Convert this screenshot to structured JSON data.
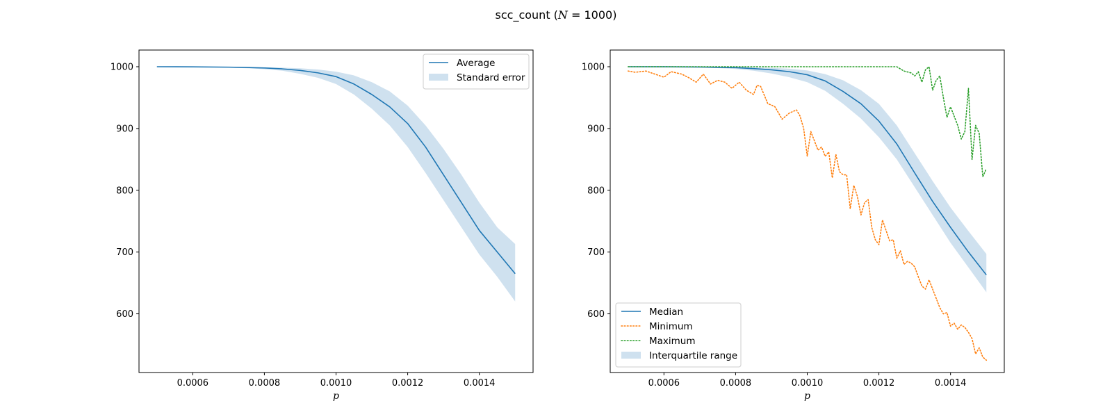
{
  "figure": {
    "title_prefix": "scc_count (",
    "title_var": "N",
    "title_suffix": " = 1000)"
  },
  "colors": {
    "blue": "#1f77b4",
    "blue_fill": "#cfe1ef",
    "orange": "#ff7f0e",
    "green": "#2ca02c"
  },
  "chart_data": [
    {
      "type": "line",
      "xlabel": "p",
      "xlim": [
        0.00045,
        0.00155
      ],
      "ylim": [
        505,
        1027
      ],
      "xticks": [
        0.0006,
        0.0008,
        0.001,
        0.0012,
        0.0014
      ],
      "xtick_labels": [
        "0.0006",
        "0.0008",
        "0.0010",
        "0.0012",
        "0.0014"
      ],
      "yticks": [
        600,
        700,
        800,
        900,
        1000
      ],
      "ytick_labels": [
        "600",
        "700",
        "800",
        "900",
        "1000"
      ],
      "legend": {
        "position": "upper right",
        "entries": [
          "Average",
          "Standard error"
        ]
      },
      "x": [
        0.0005,
        0.0006,
        0.0007,
        0.00075,
        0.0008,
        0.00085,
        0.0009,
        0.00095,
        0.001,
        0.00105,
        0.0011,
        0.00115,
        0.0012,
        0.00125,
        0.0013,
        0.00135,
        0.0014,
        0.00145,
        0.0015
      ],
      "series": [
        {
          "name": "Average",
          "style": "solid",
          "values": [
            1000,
            999.8,
            999.3,
            998.8,
            998,
            996.5,
            994,
            990,
            984,
            972,
            955,
            935,
            908,
            870,
            825,
            780,
            735,
            700,
            665
          ]
        },
        {
          "name": "Standard error",
          "style": "band",
          "lower": [
            1000,
            999.6,
            998.5,
            997.5,
            996,
            993.5,
            988.5,
            982,
            972,
            955,
            932,
            905,
            870,
            828,
            784,
            740,
            696,
            660,
            620
          ],
          "upper": [
            1000,
            999.9,
            999.8,
            999.5,
            999,
            998.5,
            997.5,
            995.5,
            992,
            986,
            975,
            960,
            937,
            905,
            867,
            825,
            780,
            740,
            713
          ]
        }
      ]
    },
    {
      "type": "line",
      "xlabel": "p",
      "xlim": [
        0.00045,
        0.00155
      ],
      "ylim": [
        505,
        1027
      ],
      "xticks": [
        0.0006,
        0.0008,
        0.001,
        0.0012,
        0.0014
      ],
      "xtick_labels": [
        "0.0006",
        "0.0008",
        "0.0010",
        "0.0012",
        "0.0014"
      ],
      "yticks": [
        600,
        700,
        800,
        900,
        1000
      ],
      "ytick_labels": [
        "600",
        "700",
        "800",
        "900",
        "1000"
      ],
      "legend": {
        "position": "lower left",
        "entries": [
          "Median",
          "Minimum",
          "Maximum",
          "Interquartile range"
        ]
      },
      "series": [
        {
          "name": "Median",
          "style": "solid",
          "x": [
            0.0005,
            0.0006,
            0.0007,
            0.00075,
            0.0008,
            0.00085,
            0.0009,
            0.00095,
            0.001,
            0.00105,
            0.0011,
            0.00115,
            0.0012,
            0.00125,
            0.0013,
            0.00135,
            0.0014,
            0.00145,
            0.0015
          ],
          "values": [
            1000,
            999.9,
            999.5,
            999,
            998.5,
            997,
            995,
            992,
            987,
            977,
            960,
            940,
            912,
            875,
            828,
            782,
            740,
            700,
            663
          ]
        },
        {
          "name": "Interquartile range",
          "style": "band",
          "x": [
            0.0005,
            0.0006,
            0.0007,
            0.00075,
            0.0008,
            0.00085,
            0.0009,
            0.00095,
            0.001,
            0.00105,
            0.0011,
            0.00115,
            0.0012,
            0.00125,
            0.0013,
            0.00135,
            0.0014,
            0.00145,
            0.0015
          ],
          "lower": [
            1000,
            999.5,
            998.7,
            997.8,
            996.3,
            993.5,
            989,
            983,
            975,
            961,
            940,
            916,
            886,
            850,
            805,
            760,
            715,
            675,
            635
          ],
          "upper": [
            1000,
            1000,
            999.8,
            999.6,
            999.3,
            999,
            998.2,
            996.8,
            994,
            988,
            978,
            962,
            940,
            905,
            860,
            815,
            772,
            734,
            697
          ]
        },
        {
          "name": "Minimum",
          "style": "dotted",
          "x": [
            0.0005,
            0.00052,
            0.00055,
            0.00057,
            0.0006,
            0.00062,
            0.00065,
            0.00067,
            0.00069,
            0.00071,
            0.00073,
            0.00075,
            0.00077,
            0.00079,
            0.00081,
            0.00083,
            0.00085,
            0.00086,
            0.00087,
            0.00089,
            0.0009,
            0.00091,
            0.00093,
            0.00095,
            0.00097,
            0.00098,
            0.00099,
            0.001,
            0.00101,
            0.00102,
            0.00103,
            0.00104,
            0.00105,
            0.00106,
            0.00107,
            0.00108,
            0.00109,
            0.0011,
            0.00111,
            0.00112,
            0.00113,
            0.00114,
            0.00115,
            0.00116,
            0.00117,
            0.00118,
            0.00119,
            0.0012,
            0.00121,
            0.00122,
            0.00123,
            0.00124,
            0.00125,
            0.00126,
            0.00127,
            0.00128,
            0.00129,
            0.0013,
            0.00131,
            0.00132,
            0.00133,
            0.00134,
            0.00135,
            0.00136,
            0.00137,
            0.00138,
            0.00139,
            0.0014,
            0.00141,
            0.00142,
            0.00143,
            0.00144,
            0.00145,
            0.00146,
            0.00147,
            0.00148,
            0.00149,
            0.0015
          ],
          "values": [
            993,
            991,
            993,
            989,
            983,
            992,
            988,
            982,
            975,
            988,
            972,
            978,
            975,
            965,
            975,
            962,
            955,
            970,
            968,
            940,
            938,
            935,
            915,
            925,
            930,
            920,
            900,
            855,
            895,
            880,
            865,
            870,
            855,
            862,
            820,
            858,
            830,
            825,
            825,
            770,
            808,
            790,
            760,
            780,
            785,
            740,
            720,
            712,
            752,
            735,
            718,
            720,
            690,
            702,
            680,
            685,
            682,
            676,
            660,
            645,
            640,
            655,
            640,
            625,
            610,
            600,
            602,
            580,
            585,
            575,
            582,
            578,
            570,
            560,
            535,
            545,
            530,
            525
          ]
        },
        {
          "name": "Maximum",
          "style": "dotted",
          "x": [
            0.0005,
            0.0008,
            0.00125,
            0.00127,
            0.00129,
            0.0013,
            0.00131,
            0.00132,
            0.00133,
            0.00134,
            0.00135,
            0.00136,
            0.00137,
            0.00138,
            0.00139,
            0.0014,
            0.00141,
            0.00142,
            0.00143,
            0.00144,
            0.00145,
            0.00146,
            0.00147,
            0.00148,
            0.00149,
            0.0015
          ],
          "values": [
            1000,
            1000,
            1000,
            993,
            990,
            985,
            992,
            975,
            995,
            1000,
            962,
            978,
            985,
            950,
            918,
            935,
            920,
            905,
            883,
            895,
            965,
            850,
            905,
            892,
            822,
            835
          ]
        }
      ]
    }
  ]
}
